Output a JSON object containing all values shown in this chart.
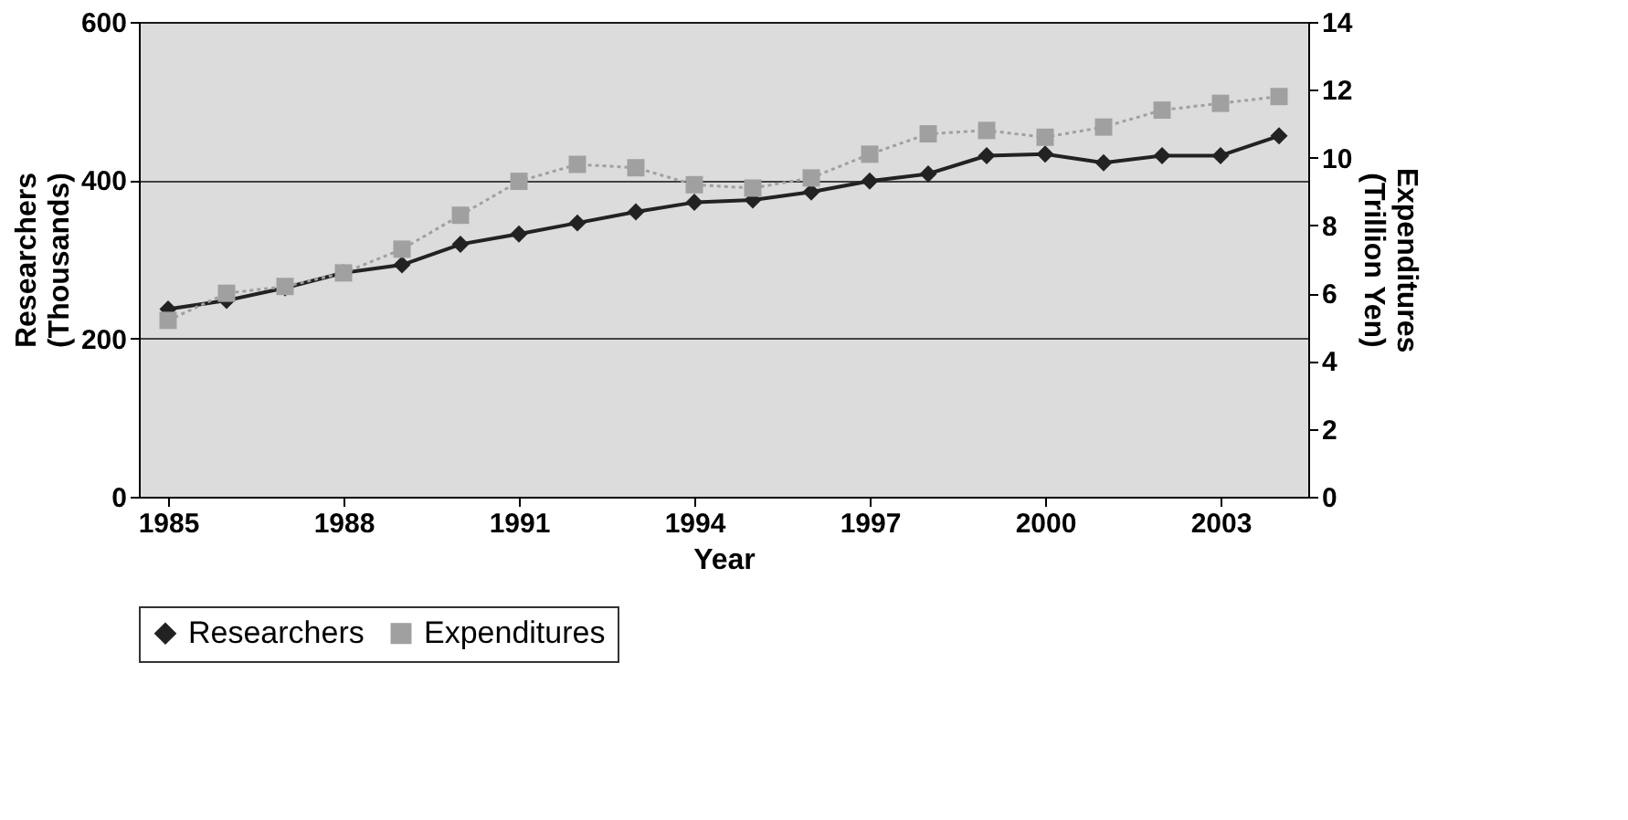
{
  "chart_data": {
    "type": "line",
    "xlabel": "Year",
    "ylabel": "Researchers\n(Thousands)",
    "y2label": "Expenditures\n(Trillion Yen)",
    "x": [
      1985,
      1986,
      1987,
      1988,
      1989,
      1990,
      1991,
      1992,
      1993,
      1994,
      1995,
      1996,
      1997,
      1998,
      1999,
      2000,
      2001,
      2002,
      2003,
      2004
    ],
    "xlim": [
      1984.5,
      2004.5
    ],
    "xticks": [
      1985,
      1988,
      1991,
      1994,
      1997,
      2000,
      2003
    ],
    "ylim": [
      0,
      600
    ],
    "yticks": [
      0,
      200,
      400,
      600
    ],
    "y2lim": [
      0,
      14
    ],
    "y2ticks": [
      0,
      2,
      4,
      6,
      8,
      10,
      12,
      14
    ],
    "grid": "y",
    "legend": "bottom",
    "series": [
      {
        "name": "Researchers",
        "color": "#222222",
        "marker": "diamond",
        "line_style": "solid",
        "values": [
          237,
          248,
          264,
          283,
          293,
          319,
          332,
          346,
          360,
          372,
          375,
          385,
          399,
          408,
          431,
          433,
          422,
          431,
          431,
          456
        ]
      },
      {
        "name": "Expenditures",
        "color": "#a0a0a0",
        "marker": "square",
        "line_style": "dotted",
        "axis": "y2",
        "values": [
          5.2,
          6.0,
          6.2,
          6.6,
          7.3,
          8.3,
          9.3,
          9.8,
          9.7,
          9.2,
          9.1,
          9.4,
          10.1,
          10.7,
          10.8,
          10.6,
          10.9,
          11.4,
          11.6,
          11.8
        ]
      }
    ]
  }
}
